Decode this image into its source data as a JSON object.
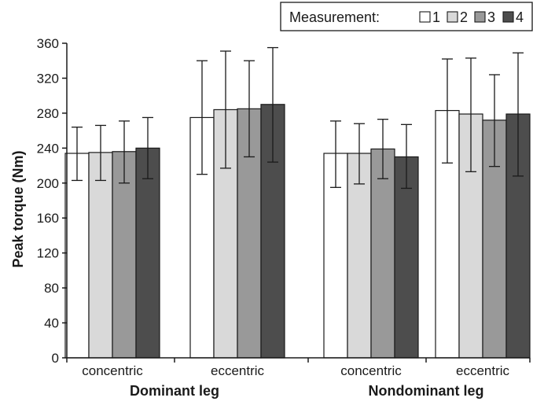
{
  "chart_data": {
    "type": "bar",
    "ylabel": "Peak torque (Nm)",
    "ylim": [
      0,
      360
    ],
    "yticks": [
      0,
      40,
      80,
      120,
      160,
      200,
      240,
      280,
      320,
      360
    ],
    "legend": {
      "title": "Measurement:",
      "placement": "top-right"
    },
    "groups": [
      {
        "label": "Dominant leg",
        "categories": [
          "concentric",
          "eccentric"
        ]
      },
      {
        "label": "Nondominant leg",
        "categories": [
          "concentric",
          "eccentric"
        ]
      }
    ],
    "categories": [
      "concentric",
      "eccentric",
      "concentric",
      "eccentric"
    ],
    "series": [
      {
        "name": "1",
        "color": "#ffffff",
        "values": [
          234,
          275,
          234,
          283
        ],
        "err_low": [
          203,
          210,
          195,
          223
        ],
        "err_high": [
          264,
          340,
          271,
          342
        ]
      },
      {
        "name": "2",
        "color": "#d9d9d9",
        "values": [
          235,
          284,
          234,
          279
        ],
        "err_low": [
          203,
          217,
          199,
          213
        ],
        "err_high": [
          266,
          351,
          268,
          343
        ]
      },
      {
        "name": "3",
        "color": "#999999",
        "values": [
          236,
          285,
          239,
          272
        ],
        "err_low": [
          200,
          230,
          205,
          219
        ],
        "err_high": [
          271,
          340,
          273,
          324
        ]
      },
      {
        "name": "4",
        "color": "#4d4d4d",
        "values": [
          240,
          290,
          230,
          279
        ],
        "err_low": [
          205,
          224,
          194,
          208
        ],
        "err_high": [
          275,
          355,
          267,
          349
        ]
      }
    ]
  }
}
